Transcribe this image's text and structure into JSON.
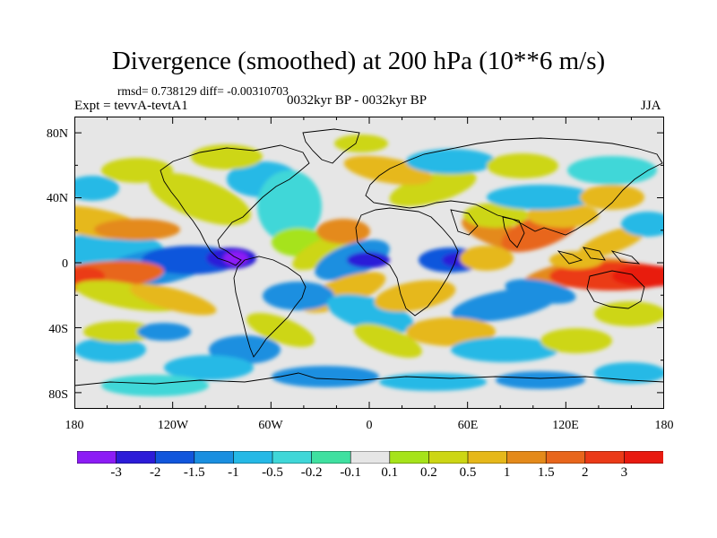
{
  "header": {
    "title": "Divergence (smoothed) at 200 hPa (10**6 m/s)",
    "stats": "rmsd= 0.738129 diff= -0.00310703",
    "experiment": "Expt = tevvA-tevtA1",
    "period": "0032kyr BP - 0032kyr BP",
    "season": "JJA"
  },
  "map": {
    "lat_ticks": [
      "80N",
      "40N",
      "0",
      "40S",
      "80S"
    ],
    "lon_ticks": [
      "180",
      "120W",
      "60W",
      "0",
      "60E",
      "120E",
      "180"
    ],
    "lat_range": [
      -90,
      90
    ],
    "lon_range": [
      -180,
      180
    ],
    "projection": "cylindrical equidistant",
    "field": "divergence anomaly, filled contours"
  },
  "colorbar": {
    "labels": [
      "-3",
      "-2",
      "-1.5",
      "-1",
      "-0.5",
      "-0.2",
      "-0.1",
      "0.1",
      "0.2",
      "0.5",
      "1",
      "1.5",
      "2",
      "3"
    ],
    "colors": [
      "#8c1cf5",
      "#2c1cd8",
      "#1156dc",
      "#1a8fe0",
      "#25b9e6",
      "#3fd7d8",
      "#3fe0a0",
      "#e6e6e6",
      "#a6e31a",
      "#cdd614",
      "#e6b81a",
      "#e48a1a",
      "#e8661c",
      "#eb3a18",
      "#e81a10"
    ]
  }
}
